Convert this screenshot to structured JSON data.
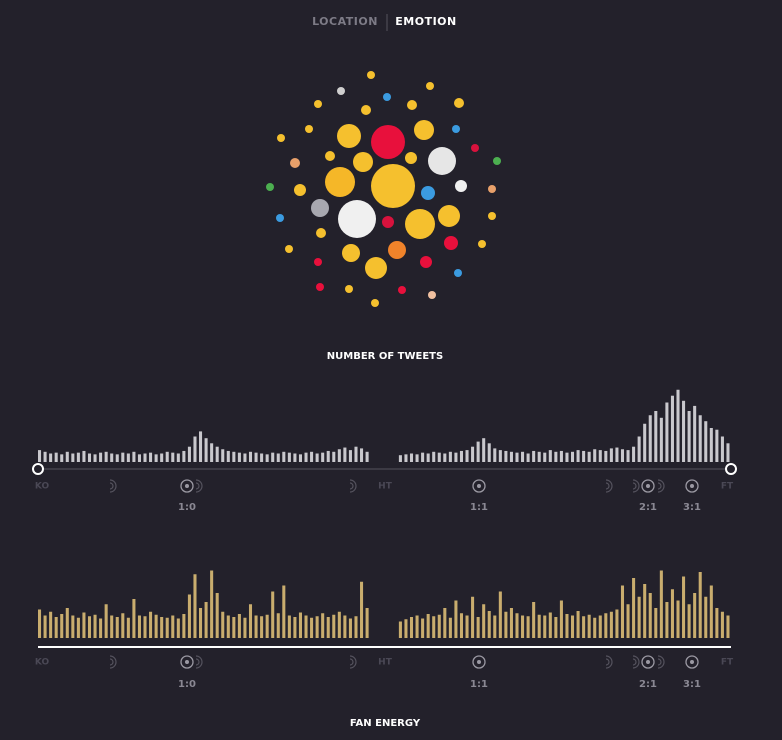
{
  "nav": {
    "items": [
      "LOCATION",
      "EMOTION"
    ]
  },
  "timeline": {
    "start": "KO",
    "half": "HT",
    "end": "FT",
    "goals": [
      "1:0",
      "1:1",
      "2:1",
      "3:1"
    ]
  },
  "chart_data": [
    {
      "type": "bar",
      "title": "NUMBER OF TWEETS",
      "color": "#c9c8cd",
      "ylim": [
        0,
        100
      ],
      "values": [
        14,
        12,
        10,
        11,
        9,
        12,
        10,
        11,
        13,
        10,
        9,
        11,
        12,
        10,
        9,
        11,
        10,
        12,
        9,
        10,
        11,
        9,
        10,
        12,
        11,
        10,
        13,
        18,
        30,
        36,
        28,
        22,
        18,
        15,
        13,
        12,
        11,
        10,
        12,
        11,
        10,
        9,
        11,
        10,
        12,
        11,
        10,
        9,
        11,
        12,
        10,
        11,
        13,
        12,
        15,
        17,
        14,
        18,
        16,
        12,
        null,
        null,
        null,
        null,
        null,
        8,
        9,
        10,
        9,
        11,
        10,
        12,
        11,
        10,
        12,
        11,
        13,
        14,
        18,
        24,
        28,
        22,
        16,
        14,
        13,
        12,
        11,
        12,
        10,
        13,
        12,
        11,
        14,
        12,
        13,
        11,
        12,
        14,
        13,
        12,
        15,
        14,
        13,
        16,
        17,
        15,
        14,
        18,
        30,
        45,
        55,
        60,
        52,
        70,
        78,
        85,
        72,
        60,
        66,
        55,
        48,
        40,
        38,
        30,
        22
      ]
    },
    {
      "type": "bar",
      "title": "FAN ENERGY",
      "color": "#c9ad6e",
      "ylim": [
        0,
        100
      ],
      "values": [
        38,
        30,
        35,
        28,
        32,
        40,
        30,
        27,
        34,
        29,
        31,
        26,
        45,
        30,
        28,
        33,
        27,
        52,
        30,
        29,
        35,
        31,
        28,
        27,
        30,
        26,
        32,
        58,
        85,
        40,
        48,
        90,
        60,
        35,
        30,
        28,
        32,
        27,
        45,
        30,
        29,
        31,
        62,
        33,
        70,
        30,
        28,
        34,
        30,
        27,
        29,
        33,
        28,
        31,
        35,
        30,
        26,
        29,
        75,
        40,
        null,
        null,
        null,
        null,
        null,
        22,
        25,
        28,
        30,
        26,
        32,
        29,
        31,
        40,
        27,
        50,
        33,
        30,
        55,
        28,
        45,
        36,
        30,
        62,
        35,
        40,
        33,
        30,
        29,
        48,
        31,
        30,
        34,
        28,
        50,
        32,
        30,
        36,
        29,
        31,
        27,
        30,
        33,
        35,
        38,
        70,
        45,
        80,
        55,
        72,
        60,
        40,
        90,
        48,
        65,
        50,
        82,
        45,
        60,
        88,
        55,
        70,
        40,
        35,
        30
      ]
    }
  ]
}
